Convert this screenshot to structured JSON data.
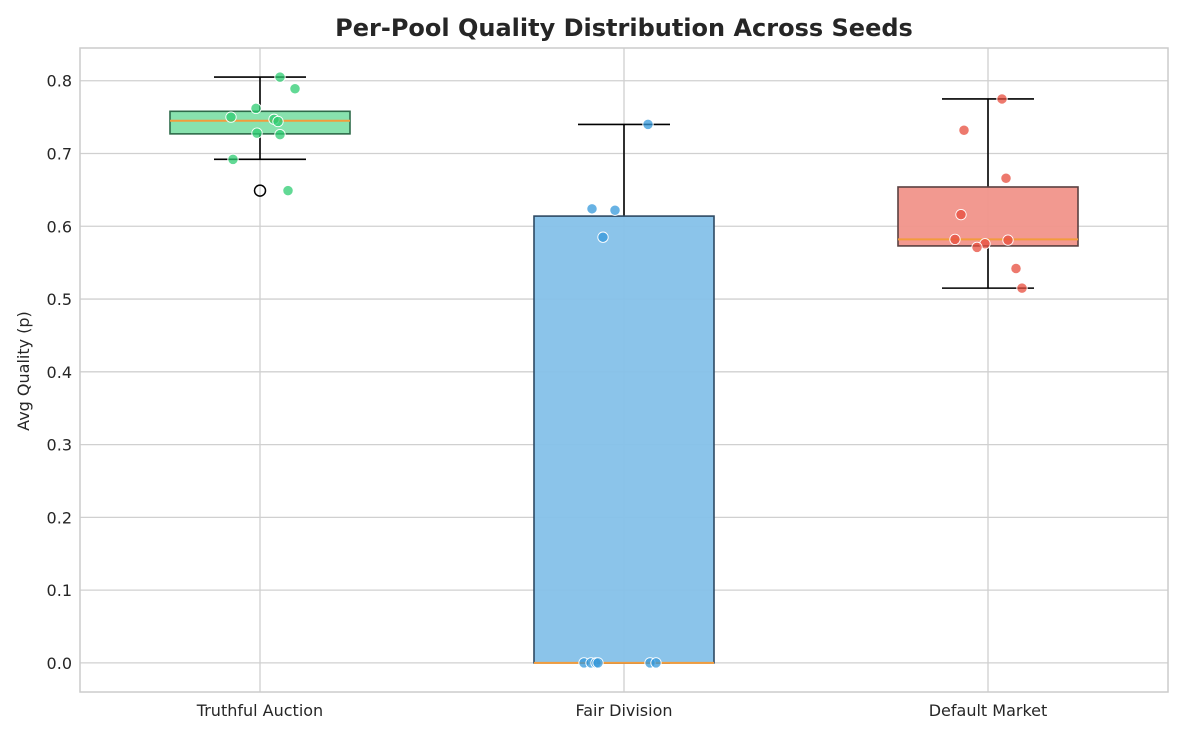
{
  "chart_data": {
    "type": "box",
    "title": "Per-Pool Quality Distribution Across Seeds",
    "xlabel": "",
    "ylabel": "Avg Quality (p)",
    "ylim": [
      -0.04,
      0.845
    ],
    "yticks": [
      "0.0",
      "0.1",
      "0.2",
      "0.3",
      "0.4",
      "0.5",
      "0.6",
      "0.7",
      "0.8"
    ],
    "grid": true,
    "categories": [
      "Truthful Auction",
      "Fair Division",
      "Default Market"
    ],
    "series": [
      {
        "category": "Truthful Auction",
        "color": "#2ecc71",
        "box_color": "#82e0aa",
        "edge_color": "#2e6b4a",
        "q1": 0.727,
        "median": 0.745,
        "q3": 0.758,
        "whisker_low": 0.692,
        "whisker_high": 0.805,
        "outliers": [
          0.649
        ],
        "points": [
          0.805,
          0.789,
          0.762,
          0.75,
          0.747,
          0.744,
          0.728,
          0.726,
          0.692,
          0.649
        ]
      },
      {
        "category": "Fair Division",
        "color": "#3498db",
        "box_color": "#85c1e9",
        "edge_color": "#2e4a63",
        "q1": 0.0,
        "median": 0.0,
        "q3": 0.614,
        "whisker_low": 0.0,
        "whisker_high": 0.74,
        "outliers": [],
        "points": [
          0.74,
          0.624,
          0.622,
          0.585,
          0.0,
          0.0,
          0.0,
          0.0,
          0.0,
          0.0
        ]
      },
      {
        "category": "Default Market",
        "color": "#e74c3c",
        "box_color": "#f1948a",
        "edge_color": "#5a4040",
        "q1": 0.573,
        "median": 0.582,
        "q3": 0.654,
        "whisker_low": 0.515,
        "whisker_high": 0.775,
        "outliers": [],
        "points": [
          0.775,
          0.732,
          0.666,
          0.616,
          0.582,
          0.581,
          0.576,
          0.571,
          0.542,
          0.515
        ]
      }
    ],
    "median_color": "#f39c3c"
  }
}
